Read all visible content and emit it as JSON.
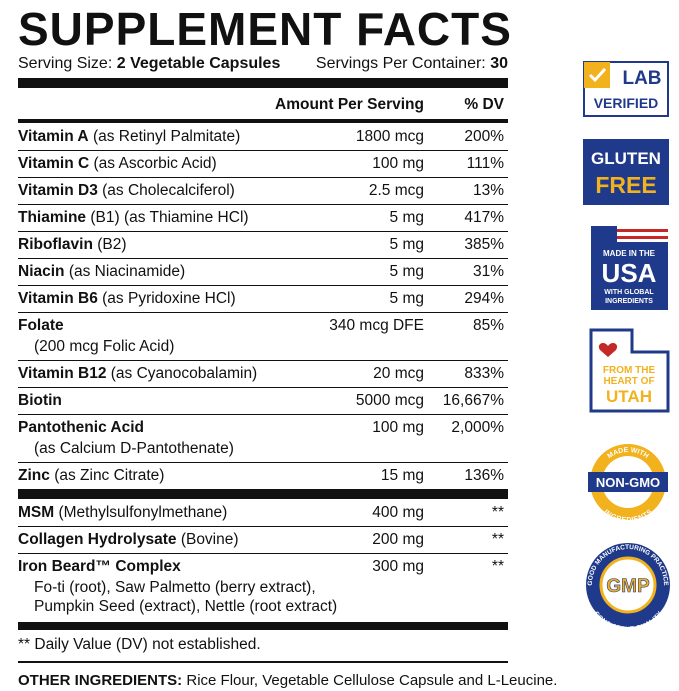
{
  "header": {
    "title": "SUPPLEMENT FACTS",
    "serving_size_label": "Serving Size:",
    "serving_size": "2 Vegetable Capsules",
    "servings_label": "Servings Per Container:",
    "servings": "30"
  },
  "columns": [
    "Amount Per Serving",
    "% DV"
  ],
  "sections": [
    {
      "rows": [
        {
          "name": "Vitamin A",
          "detail": "(as Retinyl Palmitate)",
          "amount": "1800 mcg",
          "dv": "200%"
        },
        {
          "name": "Vitamin C",
          "detail": "(as Ascorbic Acid)",
          "amount": "100 mg",
          "dv": "111%"
        },
        {
          "name": "Vitamin D3",
          "detail": "(as Cholecalciferol)",
          "amount": "2.5 mcg",
          "dv": "13%"
        },
        {
          "name": "Thiamine",
          "detail": "(B1) (as Thiamine HCl)",
          "amount": "5 mg",
          "dv": "417%"
        },
        {
          "name": "Riboflavin",
          "detail": "(B2)",
          "amount": "5 mg",
          "dv": "385%"
        },
        {
          "name": "Niacin",
          "detail": "(as Niacinamide)",
          "amount": "5 mg",
          "dv": "31%"
        },
        {
          "name": "Vitamin B6",
          "detail": "(as Pyridoxine HCl)",
          "amount": "5 mg",
          "dv": "294%"
        },
        {
          "name": "Folate",
          "sub": [
            "(200 mcg Folic Acid)"
          ],
          "amount": "340 mcg DFE",
          "dv": "85%"
        },
        {
          "name": "Vitamin B12",
          "detail": "(as Cyanocobalamin)",
          "amount": "20 mcg",
          "dv": "833%"
        },
        {
          "name": "Biotin",
          "amount": "5000 mcg",
          "dv": "16,667%"
        },
        {
          "name": "Pantothenic Acid",
          "sub": [
            "(as Calcium D-Pantothenate)"
          ],
          "amount": "100 mg",
          "dv": "2,000%"
        },
        {
          "name": "Zinc",
          "detail": "(as Zinc Citrate)",
          "amount": "15 mg",
          "dv": "136%"
        }
      ]
    },
    {
      "rows": [
        {
          "name": "MSM",
          "detail": "(Methylsulfonylmethane)",
          "amount": "400 mg",
          "dv": "**"
        },
        {
          "name": "Collagen Hydrolysate",
          "detail": "(Bovine)",
          "amount": "200 mg",
          "dv": "**"
        },
        {
          "name": "Iron Beard™ Complex",
          "sub": [
            "Fo-ti (root), Saw Palmetto (berry extract),",
            "Pumpkin Seed (extract), Nettle (root extract)"
          ],
          "amount": "300 mg",
          "dv": "**"
        }
      ]
    }
  ],
  "footnote": "** Daily Value (DV) not established.",
  "other_ingredients": {
    "label": "OTHER INGREDIENTS:",
    "text": "Rice Flour, Vegetable Cellulose Capsule and L-Leucine."
  },
  "badges": {
    "lab": [
      "LAB",
      "VERIFIED"
    ],
    "gluten": [
      "GLUTEN",
      "FREE"
    ],
    "usa": [
      "MADE IN THE",
      "USA",
      "WITH GLOBAL",
      "INGREDIENTS"
    ],
    "utah": [
      "FROM THE",
      "HEART OF",
      "UTAH"
    ],
    "nongmo": [
      "MADE WITH",
      "NON-GMO",
      "INGREDIENTS"
    ],
    "gmp": [
      "GMP",
      "GOOD MANUFACTURING PRACTICE",
      "CONSISTENT QUALITY"
    ]
  }
}
